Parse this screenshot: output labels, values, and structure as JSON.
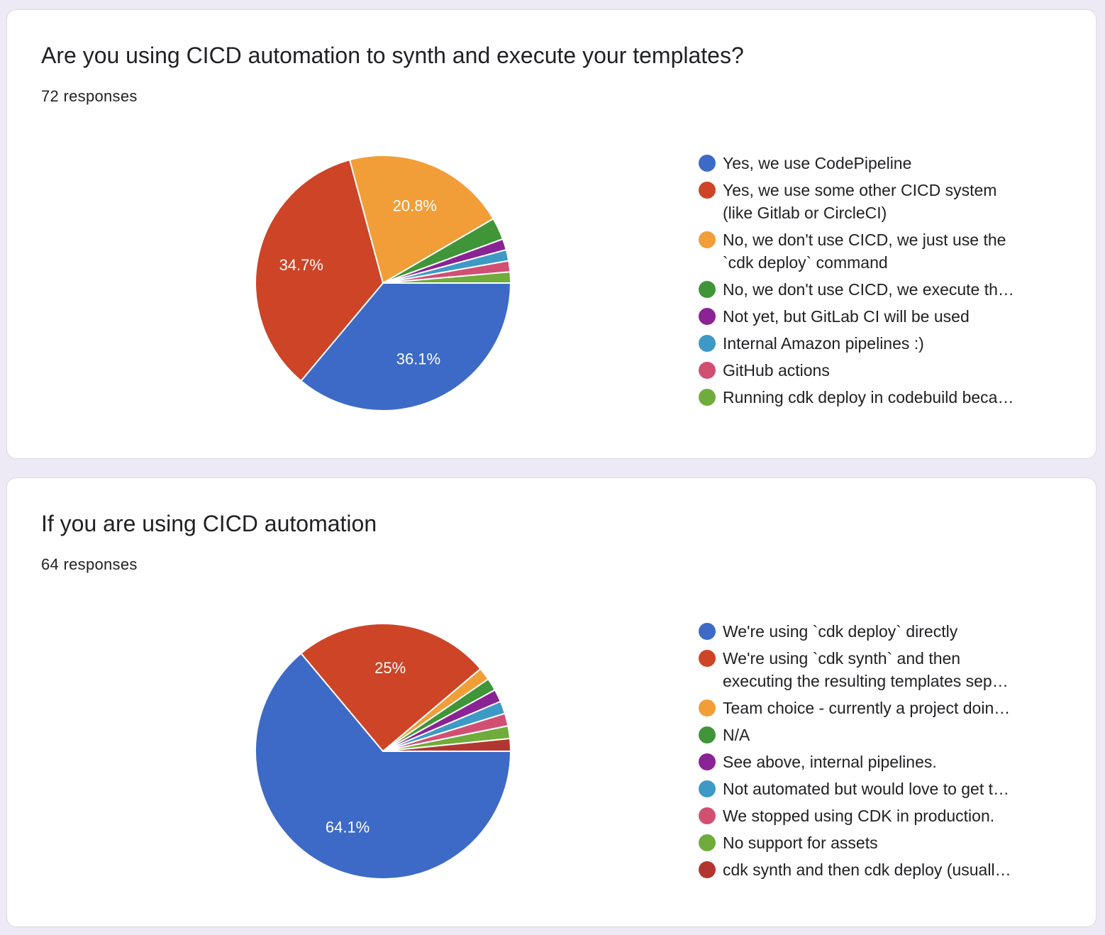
{
  "chart_data": [
    {
      "type": "pie",
      "title": "Are you using CICD automation to synth and execute your templates?",
      "subtitle": "72 responses",
      "categories": [
        "Yes, we use CodePipeline",
        "Yes, we use some other CICD system (like Gitlab or CircleCI)",
        "No, we don't use CICD, we just use the `cdk deploy` command",
        "No, we don't use CICD, we execute th…",
        "Not yet, but GitLab CI will be used",
        "Internal Amazon pipelines :)",
        "GitHub actions",
        "Running cdk deploy in codebuild beca…"
      ],
      "values": [
        36.1,
        34.7,
        20.8,
        2.8,
        1.4,
        1.4,
        1.4,
        1.4
      ],
      "value_labels": [
        "36.1%",
        "34.7%",
        "20.8%",
        "",
        "",
        "",
        "",
        ""
      ],
      "colors": [
        "#3d6ac6",
        "#cd4427",
        "#f19e38",
        "#3f9538",
        "#8a2394",
        "#3d99c6",
        "#d24f74",
        "#6fac3b"
      ],
      "legend_position": "right"
    },
    {
      "type": "pie",
      "title": "If you are using CICD automation",
      "subtitle": "64 responses",
      "categories": [
        "We're using `cdk deploy` directly",
        "We're using `cdk synth` and then executing the resulting templates sep…",
        "Team choice - currently a project doin…",
        "N/A",
        "See above, internal pipelines.",
        "Not automated but would love to get t…",
        "We stopped using CDK in production.",
        "No support for assets",
        "cdk synth and then cdk deploy (usuall…"
      ],
      "values": [
        64.1,
        25.0,
        1.6,
        1.6,
        1.6,
        1.6,
        1.6,
        1.6,
        1.6
      ],
      "value_labels": [
        "64.1%",
        "25%",
        "",
        "",
        "",
        "",
        "",
        "",
        ""
      ],
      "colors": [
        "#3d6ac6",
        "#cd4427",
        "#f19e38",
        "#3f9538",
        "#8a2394",
        "#3d99c6",
        "#d24f74",
        "#6fac3b",
        "#b2362f"
      ],
      "legend_position": "right"
    }
  ]
}
